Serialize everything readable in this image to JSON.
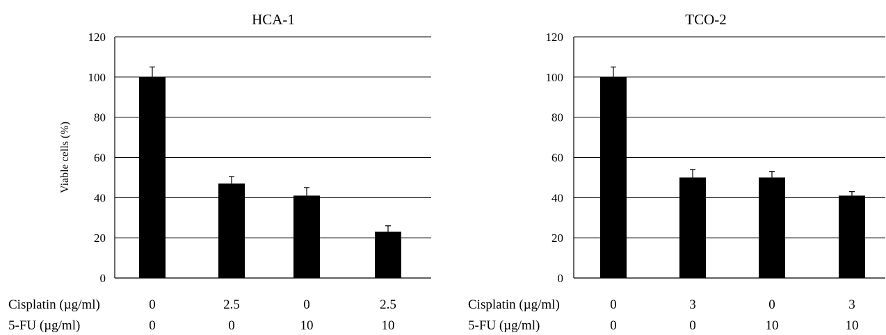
{
  "chart_data": [
    {
      "type": "bar",
      "title": "HCA-1",
      "ylabel": "Viable cells (%)",
      "ylim": [
        0,
        120
      ],
      "yticks": [
        0,
        20,
        40,
        60,
        80,
        100,
        120
      ],
      "grid": true,
      "bar_color": "#000000",
      "values": [
        100,
        47,
        41,
        23
      ],
      "errors": [
        5,
        3.5,
        4,
        3
      ],
      "row_labels": [
        {
          "label": "Cisplatin (µg/ml)",
          "values": [
            "0",
            "2.5",
            "0",
            "2.5"
          ]
        },
        {
          "label": "5-FU (µg/ml)",
          "values": [
            "0",
            "0",
            "10",
            "10"
          ]
        }
      ]
    },
    {
      "type": "bar",
      "title": "TCO-2",
      "ylabel": "",
      "ylim": [
        0,
        120
      ],
      "yticks": [
        0,
        20,
        40,
        60,
        80,
        100,
        120
      ],
      "grid": true,
      "bar_color": "#000000",
      "values": [
        100,
        50,
        50,
        41
      ],
      "errors": [
        5,
        4,
        3,
        2
      ],
      "row_labels": [
        {
          "label": "Cisplatin (µg/ml)",
          "values": [
            "0",
            "3",
            "0",
            "3"
          ]
        },
        {
          "label": "5-FU (µg/ml)",
          "values": [
            "0",
            "0",
            "10",
            "10"
          ]
        }
      ]
    }
  ]
}
